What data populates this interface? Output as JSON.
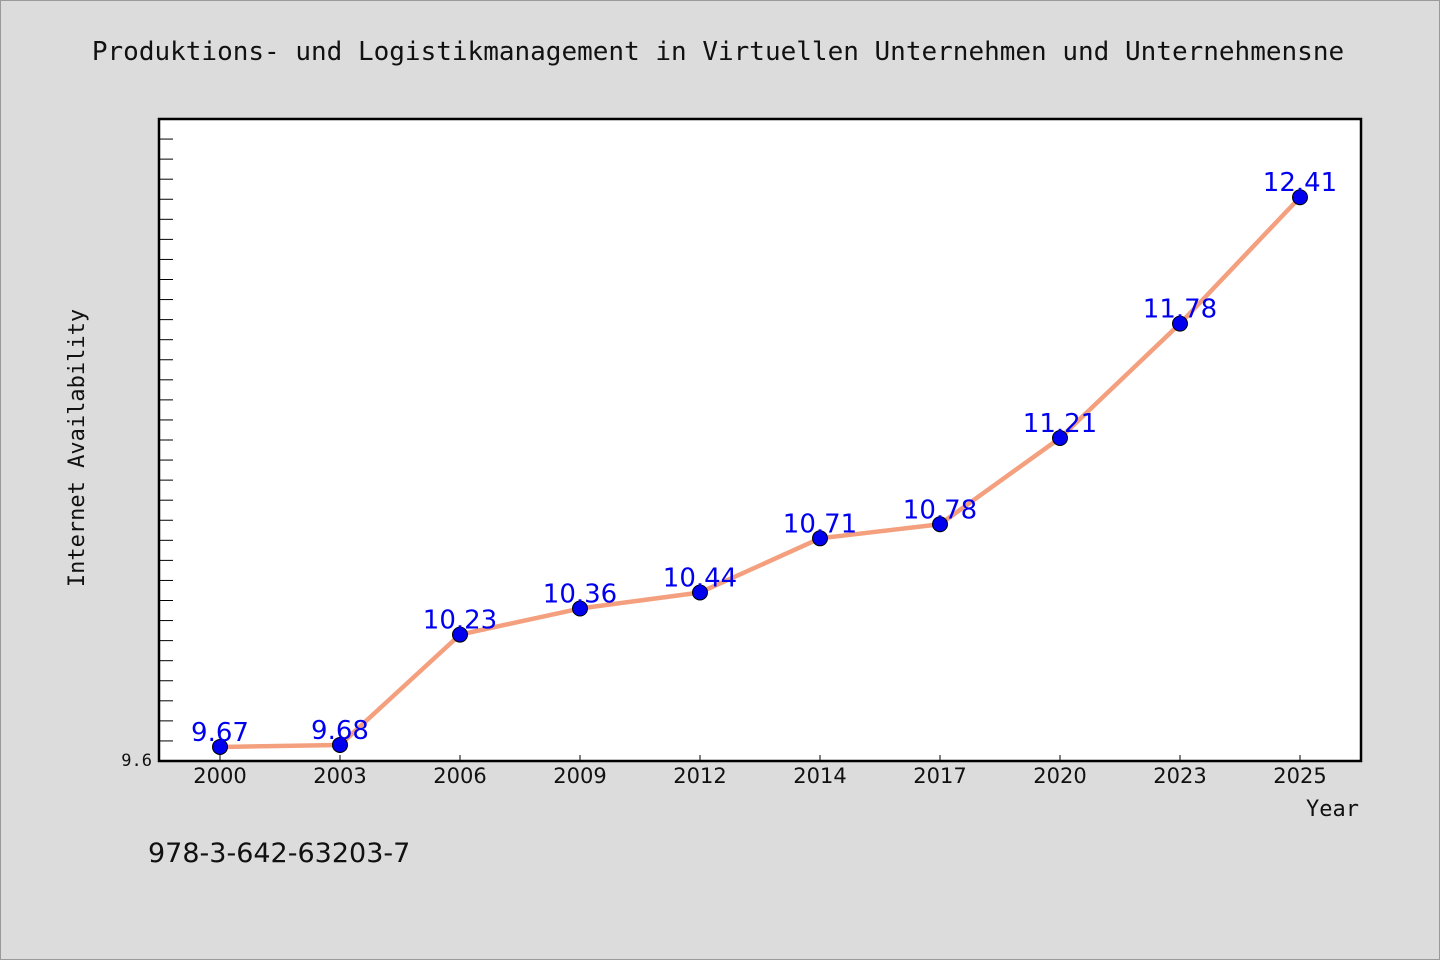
{
  "chart_data": {
    "type": "line",
    "title": "Produktions- und Logistikmanagement in Virtuellen Unternehmen und Unternehmensne",
    "xlabel": "Year",
    "ylabel": "Internet Availability",
    "categories": [
      "2000",
      "2003",
      "2006",
      "2009",
      "2012",
      "2014",
      "2017",
      "2020",
      "2023",
      "2025"
    ],
    "series": [
      {
        "values": [
          9.67,
          9.68,
          10.23,
          10.36,
          10.44,
          10.71,
          10.78,
          11.21,
          11.78,
          12.41
        ],
        "data_labels": [
          "9.67",
          "9.68",
          "10.23",
          "10.36",
          "10.44",
          "10.71",
          "10.78",
          "11.21",
          "11.78",
          "12.41"
        ]
      }
    ],
    "ylim": [
      9.6,
      12.8
    ],
    "y_tick_labels": [
      "9.6"
    ],
    "grid": false,
    "colors": {
      "line": "#f4a07e",
      "marker": "#0000ee",
      "data_label": "#0000ee",
      "plot_background": "#ffffff",
      "page_background": "#dcdcdc"
    }
  },
  "annotation": "978-3-642-63203-7"
}
